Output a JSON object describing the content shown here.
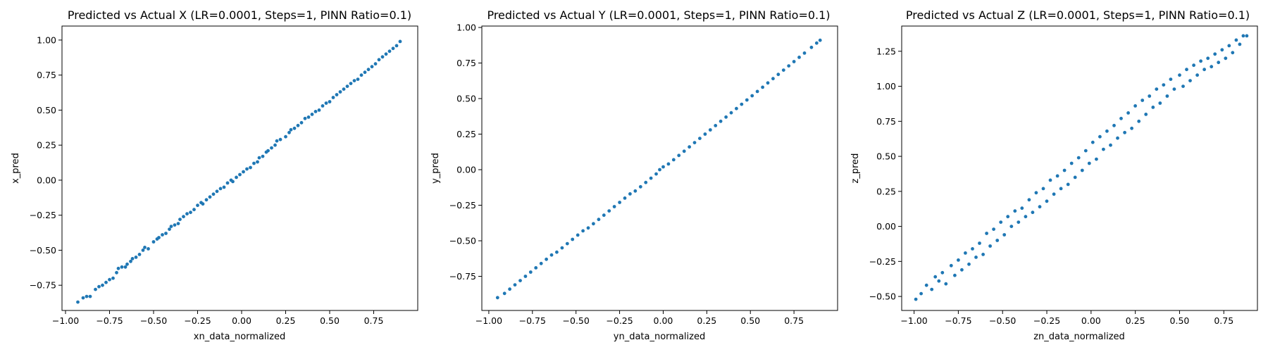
{
  "figure": {
    "background": "#ffffff",
    "point_color": "#1f77b4"
  },
  "chart_data": [
    {
      "type": "scatter",
      "title": "Predicted vs Actual X (LR=0.0001, Steps=1, PINN Ratio=0.1)",
      "xlabel": "xn_data_normalized",
      "ylabel": "x_pred",
      "xlim": [
        -1.02,
        1.0
      ],
      "ylim": [
        -0.93,
        1.1
      ],
      "xticks": [
        -1.0,
        -0.75,
        -0.5,
        -0.25,
        0.0,
        0.25,
        0.5,
        0.75
      ],
      "yticks": [
        -0.75,
        -0.5,
        -0.25,
        0.0,
        0.25,
        0.5,
        0.75,
        1.0
      ],
      "grid": false,
      "series": [
        {
          "color": "#1f77b4",
          "points": [
            [
              -0.93,
              -0.87
            ],
            [
              -0.9,
              -0.84
            ],
            [
              -0.88,
              -0.83
            ],
            [
              -0.86,
              -0.83
            ],
            [
              -0.83,
              -0.78
            ],
            [
              -0.81,
              -0.76
            ],
            [
              -0.79,
              -0.75
            ],
            [
              -0.77,
              -0.73
            ],
            [
              -0.75,
              -0.71
            ],
            [
              -0.73,
              -0.7
            ],
            [
              -0.71,
              -0.66
            ],
            [
              -0.7,
              -0.63
            ],
            [
              -0.68,
              -0.62
            ],
            [
              -0.66,
              -0.62
            ],
            [
              -0.65,
              -0.6
            ],
            [
              -0.63,
              -0.58
            ],
            [
              -0.62,
              -0.56
            ],
            [
              -0.6,
              -0.55
            ],
            [
              -0.58,
              -0.53
            ],
            [
              -0.56,
              -0.5
            ],
            [
              -0.55,
              -0.48
            ],
            [
              -0.53,
              -0.49
            ],
            [
              -0.5,
              -0.44
            ],
            [
              -0.48,
              -0.42
            ],
            [
              -0.47,
              -0.41
            ],
            [
              -0.45,
              -0.39
            ],
            [
              -0.43,
              -0.38
            ],
            [
              -0.41,
              -0.35
            ],
            [
              -0.4,
              -0.33
            ],
            [
              -0.38,
              -0.32
            ],
            [
              -0.36,
              -0.31
            ],
            [
              -0.35,
              -0.28
            ],
            [
              -0.33,
              -0.26
            ],
            [
              -0.31,
              -0.24
            ],
            [
              -0.29,
              -0.23
            ],
            [
              -0.27,
              -0.21
            ],
            [
              -0.25,
              -0.18
            ],
            [
              -0.23,
              -0.16
            ],
            [
              -0.22,
              -0.17
            ],
            [
              -0.2,
              -0.14
            ],
            [
              -0.18,
              -0.12
            ],
            [
              -0.16,
              -0.1
            ],
            [
              -0.14,
              -0.08
            ],
            [
              -0.12,
              -0.06
            ],
            [
              -0.1,
              -0.05
            ],
            [
              -0.08,
              -0.02
            ],
            [
              -0.06,
              0.0
            ],
            [
              -0.05,
              -0.01
            ],
            [
              -0.03,
              0.02
            ],
            [
              -0.01,
              0.04
            ],
            [
              0.01,
              0.06
            ],
            [
              0.03,
              0.08
            ],
            [
              0.05,
              0.09
            ],
            [
              0.07,
              0.12
            ],
            [
              0.09,
              0.13
            ],
            [
              0.1,
              0.16
            ],
            [
              0.12,
              0.17
            ],
            [
              0.14,
              0.2
            ],
            [
              0.15,
              0.21
            ],
            [
              0.17,
              0.23
            ],
            [
              0.19,
              0.25
            ],
            [
              0.2,
              0.28
            ],
            [
              0.22,
              0.29
            ],
            [
              0.25,
              0.31
            ],
            [
              0.27,
              0.34
            ],
            [
              0.28,
              0.36
            ],
            [
              0.3,
              0.37
            ],
            [
              0.32,
              0.39
            ],
            [
              0.34,
              0.41
            ],
            [
              0.36,
              0.44
            ],
            [
              0.38,
              0.45
            ],
            [
              0.4,
              0.47
            ],
            [
              0.42,
              0.49
            ],
            [
              0.44,
              0.5
            ],
            [
              0.46,
              0.53
            ],
            [
              0.48,
              0.55
            ],
            [
              0.5,
              0.56
            ],
            [
              0.52,
              0.59
            ],
            [
              0.54,
              0.61
            ],
            [
              0.56,
              0.63
            ],
            [
              0.58,
              0.65
            ],
            [
              0.6,
              0.67
            ],
            [
              0.62,
              0.69
            ],
            [
              0.64,
              0.71
            ],
            [
              0.66,
              0.72
            ],
            [
              0.68,
              0.75
            ],
            [
              0.7,
              0.77
            ],
            [
              0.72,
              0.79
            ],
            [
              0.74,
              0.81
            ],
            [
              0.76,
              0.83
            ],
            [
              0.78,
              0.86
            ],
            [
              0.8,
              0.88
            ],
            [
              0.82,
              0.9
            ],
            [
              0.84,
              0.92
            ],
            [
              0.86,
              0.94
            ],
            [
              0.88,
              0.96
            ],
            [
              0.9,
              0.99
            ]
          ]
        }
      ]
    },
    {
      "type": "scatter",
      "title": "Predicted vs Actual Y (LR=0.0001, Steps=1, PINN Ratio=0.1)",
      "xlabel": "yn_data_normalized",
      "ylabel": "y_pred",
      "xlim": [
        -1.04,
        1.0
      ],
      "ylim": [
        -0.99,
        1.01
      ],
      "xticks": [
        -1.0,
        -0.75,
        -0.5,
        -0.25,
        0.0,
        0.25,
        0.5,
        0.75
      ],
      "yticks": [
        -0.75,
        -0.5,
        -0.25,
        0.0,
        0.25,
        0.5,
        0.75,
        1.0
      ],
      "grid": false,
      "series": [
        {
          "color": "#1f77b4",
          "points": [
            [
              -0.95,
              -0.9
            ],
            [
              -0.91,
              -0.87
            ],
            [
              -0.88,
              -0.84
            ],
            [
              -0.85,
              -0.81
            ],
            [
              -0.82,
              -0.78
            ],
            [
              -0.79,
              -0.75
            ],
            [
              -0.76,
              -0.72
            ],
            [
              -0.73,
              -0.69
            ],
            [
              -0.7,
              -0.66
            ],
            [
              -0.67,
              -0.63
            ],
            [
              -0.64,
              -0.6
            ],
            [
              -0.61,
              -0.58
            ],
            [
              -0.58,
              -0.55
            ],
            [
              -0.55,
              -0.52
            ],
            [
              -0.52,
              -0.49
            ],
            [
              -0.49,
              -0.46
            ],
            [
              -0.46,
              -0.43
            ],
            [
              -0.43,
              -0.41
            ],
            [
              -0.4,
              -0.38
            ],
            [
              -0.37,
              -0.35
            ],
            [
              -0.34,
              -0.32
            ],
            [
              -0.31,
              -0.29
            ],
            [
              -0.28,
              -0.26
            ],
            [
              -0.25,
              -0.23
            ],
            [
              -0.22,
              -0.2
            ],
            [
              -0.19,
              -0.17
            ],
            [
              -0.16,
              -0.15
            ],
            [
              -0.13,
              -0.12
            ],
            [
              -0.1,
              -0.09
            ],
            [
              -0.07,
              -0.06
            ],
            [
              -0.04,
              -0.03
            ],
            [
              -0.02,
              0.0
            ],
            [
              0.0,
              0.02
            ],
            [
              0.03,
              0.04
            ],
            [
              0.06,
              0.07
            ],
            [
              0.09,
              0.1
            ],
            [
              0.12,
              0.13
            ],
            [
              0.15,
              0.16
            ],
            [
              0.18,
              0.19
            ],
            [
              0.21,
              0.22
            ],
            [
              0.24,
              0.25
            ],
            [
              0.27,
              0.28
            ],
            [
              0.3,
              0.31
            ],
            [
              0.33,
              0.34
            ],
            [
              0.36,
              0.37
            ],
            [
              0.39,
              0.4
            ],
            [
              0.42,
              0.43
            ],
            [
              0.45,
              0.46
            ],
            [
              0.48,
              0.49
            ],
            [
              0.51,
              0.52
            ],
            [
              0.54,
              0.55
            ],
            [
              0.57,
              0.58
            ],
            [
              0.6,
              0.61
            ],
            [
              0.63,
              0.64
            ],
            [
              0.66,
              0.67
            ],
            [
              0.69,
              0.7
            ],
            [
              0.72,
              0.73
            ],
            [
              0.75,
              0.76
            ],
            [
              0.78,
              0.79
            ],
            [
              0.81,
              0.82
            ],
            [
              0.85,
              0.86
            ],
            [
              0.88,
              0.89
            ],
            [
              0.9,
              0.91
            ]
          ]
        }
      ]
    },
    {
      "type": "scatter",
      "title": "Predicted vs Actual Z (LR=0.0001, Steps=1, PINN Ratio=0.1)",
      "xlabel": "zn_data_normalized",
      "ylabel": "z_pred",
      "xlim": [
        -1.07,
        0.94
      ],
      "ylim": [
        -0.6,
        1.43
      ],
      "xticks": [
        -1.0,
        -0.75,
        -0.5,
        -0.25,
        0.0,
        0.25,
        0.5,
        0.75
      ],
      "yticks": [
        -0.5,
        -0.25,
        0.0,
        0.25,
        0.5,
        0.75,
        1.0,
        1.25
      ],
      "grid": false,
      "series": [
        {
          "color": "#1f77b4",
          "points": [
            [
              -0.99,
              -0.52
            ],
            [
              -0.96,
              -0.48
            ],
            [
              -0.93,
              -0.42
            ],
            [
              -0.9,
              -0.45
            ],
            [
              -0.88,
              -0.36
            ],
            [
              -0.86,
              -0.39
            ],
            [
              -0.84,
              -0.33
            ],
            [
              -0.82,
              -0.41
            ],
            [
              -0.79,
              -0.28
            ],
            [
              -0.77,
              -0.35
            ],
            [
              -0.75,
              -0.24
            ],
            [
              -0.73,
              -0.31
            ],
            [
              -0.71,
              -0.19
            ],
            [
              -0.69,
              -0.27
            ],
            [
              -0.67,
              -0.16
            ],
            [
              -0.65,
              -0.22
            ],
            [
              -0.63,
              -0.12
            ],
            [
              -0.61,
              -0.2
            ],
            [
              -0.59,
              -0.05
            ],
            [
              -0.57,
              -0.14
            ],
            [
              -0.55,
              -0.02
            ],
            [
              -0.53,
              -0.1
            ],
            [
              -0.51,
              0.03
            ],
            [
              -0.49,
              -0.06
            ],
            [
              -0.47,
              0.07
            ],
            [
              -0.45,
              0.0
            ],
            [
              -0.43,
              0.11
            ],
            [
              -0.41,
              0.03
            ],
            [
              -0.39,
              0.13
            ],
            [
              -0.37,
              0.07
            ],
            [
              -0.35,
              0.19
            ],
            [
              -0.33,
              0.1
            ],
            [
              -0.31,
              0.24
            ],
            [
              -0.29,
              0.14
            ],
            [
              -0.27,
              0.27
            ],
            [
              -0.25,
              0.18
            ],
            [
              -0.23,
              0.33
            ],
            [
              -0.21,
              0.23
            ],
            [
              -0.19,
              0.36
            ],
            [
              -0.17,
              0.27
            ],
            [
              -0.15,
              0.4
            ],
            [
              -0.13,
              0.3
            ],
            [
              -0.11,
              0.45
            ],
            [
              -0.09,
              0.35
            ],
            [
              -0.07,
              0.49
            ],
            [
              -0.05,
              0.4
            ],
            [
              -0.03,
              0.54
            ],
            [
              -0.01,
              0.45
            ],
            [
              0.01,
              0.6
            ],
            [
              0.03,
              0.48
            ],
            [
              0.05,
              0.64
            ],
            [
              0.07,
              0.55
            ],
            [
              0.09,
              0.68
            ],
            [
              0.11,
              0.58
            ],
            [
              0.13,
              0.72
            ],
            [
              0.15,
              0.63
            ],
            [
              0.17,
              0.77
            ],
            [
              0.19,
              0.67
            ],
            [
              0.21,
              0.81
            ],
            [
              0.23,
              0.7
            ],
            [
              0.25,
              0.86
            ],
            [
              0.27,
              0.75
            ],
            [
              0.29,
              0.9
            ],
            [
              0.31,
              0.8
            ],
            [
              0.33,
              0.93
            ],
            [
              0.35,
              0.85
            ],
            [
              0.37,
              0.98
            ],
            [
              0.39,
              0.88
            ],
            [
              0.41,
              1.01
            ],
            [
              0.43,
              0.93
            ],
            [
              0.45,
              1.05
            ],
            [
              0.47,
              0.98
            ],
            [
              0.5,
              1.08
            ],
            [
              0.52,
              1.0
            ],
            [
              0.54,
              1.12
            ],
            [
              0.56,
              1.04
            ],
            [
              0.58,
              1.15
            ],
            [
              0.6,
              1.08
            ],
            [
              0.62,
              1.18
            ],
            [
              0.64,
              1.12
            ],
            [
              0.66,
              1.2
            ],
            [
              0.68,
              1.14
            ],
            [
              0.7,
              1.23
            ],
            [
              0.72,
              1.17
            ],
            [
              0.74,
              1.26
            ],
            [
              0.76,
              1.2
            ],
            [
              0.78,
              1.29
            ],
            [
              0.8,
              1.24
            ],
            [
              0.82,
              1.33
            ],
            [
              0.84,
              1.3
            ],
            [
              0.86,
              1.36
            ],
            [
              0.88,
              1.36
            ]
          ]
        }
      ]
    }
  ]
}
